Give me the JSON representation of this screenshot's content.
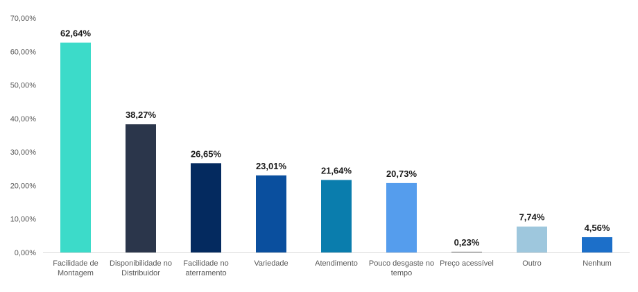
{
  "chart_data": {
    "type": "bar",
    "categories": [
      [
        "Facilidade de",
        "Montagem"
      ],
      [
        "Disponibilidade no",
        "Distribuidor"
      ],
      [
        "Facilidade no",
        "aterramento"
      ],
      [
        "Variedade"
      ],
      [
        "Atendimento"
      ],
      [
        "Pouco desgaste no",
        "tempo"
      ],
      [
        "Preço acessível"
      ],
      [
        "Outro"
      ],
      [
        "Nenhum"
      ]
    ],
    "values": [
      62.64,
      38.27,
      26.65,
      23.01,
      21.64,
      20.73,
      0.23,
      7.74,
      4.56
    ],
    "value_labels": [
      "62,64%",
      "38,27%",
      "26,65%",
      "23,01%",
      "21,64%",
      "20,73%",
      "0,23%",
      "7,74%",
      "4,56%"
    ],
    "colors": [
      "#3cdbc9",
      "#2b364b",
      "#042a5f",
      "#0a4f9e",
      "#0a7dad",
      "#559ded",
      "#8a8a8a",
      "#9ec7dd",
      "#1c6fc9"
    ],
    "ylim": [
      0,
      70
    ],
    "yticks": [
      0,
      10,
      20,
      30,
      40,
      50,
      60,
      70
    ],
    "ytick_labels": [
      "0,00%",
      "10,00%",
      "20,00%",
      "30,00%",
      "40,00%",
      "50,00%",
      "60,00%",
      "70,00%"
    ],
    "grid": false,
    "title": "",
    "xlabel": "",
    "ylabel": ""
  }
}
